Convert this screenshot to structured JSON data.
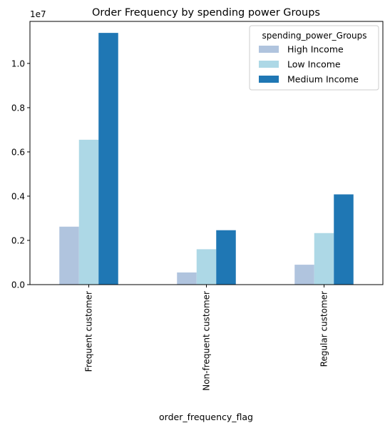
{
  "chart_data": {
    "type": "bar",
    "title": "Order Frequency by spending power Groups",
    "xlabel": "order_frequency_flag",
    "ylabel": "",
    "y_multiplier_label": "1e7",
    "categories": [
      "Frequent customer",
      "Non-frequent customer",
      "Regular customer"
    ],
    "series": [
      {
        "name": "High Income",
        "color": "#b0c4de",
        "values": [
          2620000.0,
          550000.0,
          900000.0
        ]
      },
      {
        "name": "Low Income",
        "color": "#add8e6",
        "values": [
          6550000.0,
          1600000.0,
          2330000.0
        ]
      },
      {
        "name": "Medium Income",
        "color": "#1f77b4",
        "values": [
          11380000.0,
          2460000.0,
          4080000.0
        ]
      }
    ],
    "ylim": [
      0,
      11900000.0
    ],
    "yticks": [
      0,
      2000000.0,
      4000000.0,
      6000000.0,
      8000000.0,
      10000000.0
    ],
    "ytick_labels": [
      "0.0",
      "0.2",
      "0.4",
      "0.6",
      "0.8",
      "1.0"
    ],
    "grid": false,
    "legend": {
      "title": "spending_power_Groups",
      "placement": "top-right"
    }
  }
}
